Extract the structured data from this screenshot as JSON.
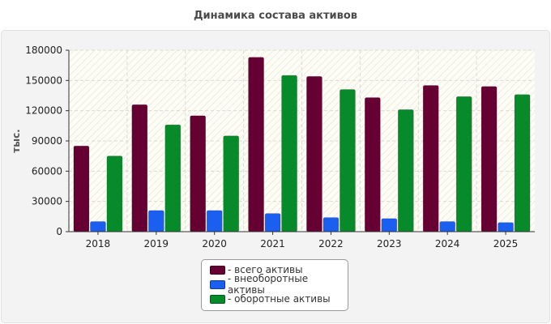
{
  "chart_data": {
    "type": "bar",
    "title": "Динамика состава активов",
    "ylabel": "тыс.",
    "xlabel": "",
    "categories": [
      "2018",
      "2019",
      "2020",
      "2021",
      "2022",
      "2023",
      "2024",
      "2025"
    ],
    "series": [
      {
        "name": "- всего активы",
        "color": "#660033",
        "values": [
          85000,
          126000,
          115000,
          173000,
          154000,
          133000,
          145000,
          144000
        ]
      },
      {
        "name": "- внеоборотные активы",
        "color": "#1a5ff0",
        "values": [
          10000,
          21000,
          21000,
          18000,
          14000,
          13000,
          10000,
          9000
        ]
      },
      {
        "name": "- оборотные активы",
        "color": "#078a2a",
        "values": [
          75000,
          106000,
          95000,
          155000,
          141000,
          121000,
          134000,
          136000
        ]
      }
    ],
    "ylim": [
      0,
      180000
    ],
    "yticks": [
      "0",
      "30000",
      "60000",
      "90000",
      "120000",
      "150000",
      "180000"
    ],
    "grid": true,
    "legend_position": "bottom-center"
  }
}
